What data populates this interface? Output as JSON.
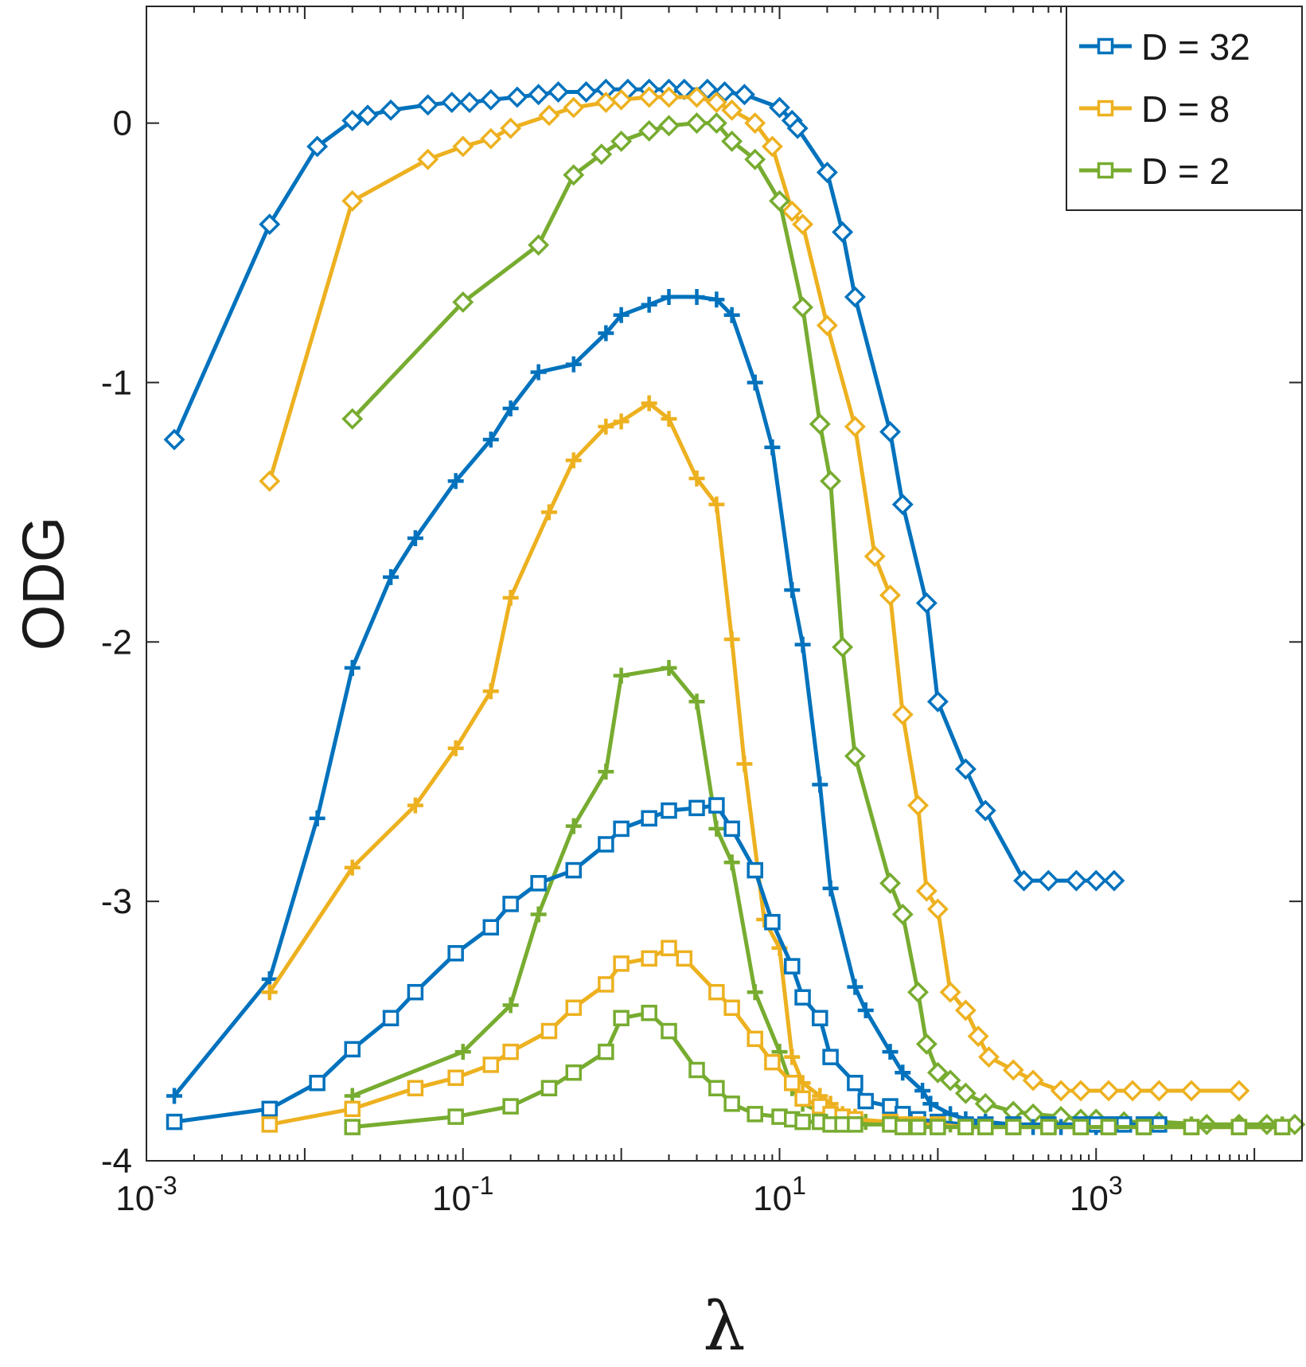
{
  "chart_data": {
    "type": "line",
    "xscale": "log",
    "xlim": [
      0.001,
      20000
    ],
    "ylim": [
      -4,
      0.45
    ],
    "xticks": [
      {
        "value": 0.001,
        "base": "10",
        "exp": "-3"
      },
      {
        "value": 0.1,
        "base": "10",
        "exp": "-1"
      },
      {
        "value": 10,
        "base": "10",
        "exp": "1"
      },
      {
        "value": 1000,
        "base": "10",
        "exp": "3"
      }
    ],
    "yticks": [
      {
        "value": 0,
        "label": "0"
      },
      {
        "value": -1,
        "label": "-1"
      },
      {
        "value": -2,
        "label": "-2"
      },
      {
        "value": -3,
        "label": "-3"
      },
      {
        "value": -4,
        "label": "-4"
      }
    ],
    "xlabel": "λ",
    "ylabel": "ODG",
    "legend_position": "top-right",
    "colors": {
      "blue": "#0072bd",
      "yellow": "#edb120",
      "green": "#77ac30"
    },
    "legend": [
      {
        "label": "D = 32",
        "color": "#0072bd"
      },
      {
        "label": "D = 8",
        "color": "#edb120"
      },
      {
        "label": "D = 2",
        "color": "#77ac30"
      }
    ],
    "series": [
      {
        "name": "D = 32 (diamond)",
        "color": "#0072bd",
        "marker": "diamond",
        "x": [
          0.0015,
          0.006,
          0.012,
          0.02,
          0.025,
          0.035,
          0.06,
          0.085,
          0.11,
          0.15,
          0.22,
          0.3,
          0.4,
          0.6,
          0.8,
          1.1,
          1.5,
          2,
          2.5,
          3.5,
          4.5,
          6,
          10,
          12,
          13,
          20,
          25,
          30,
          50,
          60,
          85,
          100,
          150,
          200,
          350,
          500,
          750,
          1000,
          1300
        ],
        "y": [
          -1.22,
          -0.39,
          -0.09,
          0.01,
          0.03,
          0.05,
          0.07,
          0.08,
          0.08,
          0.09,
          0.1,
          0.11,
          0.12,
          0.12,
          0.13,
          0.13,
          0.13,
          0.13,
          0.13,
          0.13,
          0.12,
          0.11,
          0.06,
          0.01,
          -0.02,
          -0.19,
          -0.42,
          -0.67,
          -1.19,
          -1.47,
          -1.85,
          -2.23,
          -2.49,
          -2.65,
          -2.92,
          -2.92,
          -2.92,
          -2.92,
          -2.92
        ]
      },
      {
        "name": "D = 8 (diamond)",
        "color": "#edb120",
        "marker": "diamond",
        "x": [
          0.006,
          0.02,
          0.06,
          0.1,
          0.15,
          0.2,
          0.35,
          0.5,
          0.8,
          1,
          1.5,
          2,
          3,
          4,
          5,
          7,
          9,
          12,
          14,
          20,
          30,
          40,
          50,
          60,
          75,
          85,
          100,
          120,
          150,
          180,
          210,
          300,
          400,
          600,
          800,
          1200,
          1700,
          2500,
          4000,
          8000
        ],
        "y": [
          -1.38,
          -0.3,
          -0.14,
          -0.09,
          -0.06,
          -0.02,
          0.03,
          0.06,
          0.08,
          0.09,
          0.1,
          0.1,
          0.1,
          0.08,
          0.05,
          0.0,
          -0.09,
          -0.34,
          -0.39,
          -0.78,
          -1.17,
          -1.67,
          -1.82,
          -2.28,
          -2.63,
          -2.96,
          -3.03,
          -3.35,
          -3.42,
          -3.52,
          -3.6,
          -3.65,
          -3.69,
          -3.73,
          -3.73,
          -3.73,
          -3.73,
          -3.73,
          -3.73,
          -3.73
        ]
      },
      {
        "name": "D = 2 (diamond)",
        "color": "#77ac30",
        "marker": "diamond",
        "x": [
          0.02,
          0.1,
          0.3,
          0.5,
          0.75,
          1,
          1.5,
          2,
          3,
          4,
          5,
          7,
          10,
          14,
          18,
          21,
          25,
          30,
          50,
          60,
          75,
          85,
          100,
          120,
          150,
          200,
          300,
          400,
          600,
          800,
          1000,
          1500,
          2500,
          5000,
          8000,
          12000,
          18000
        ],
        "y": [
          -1.14,
          -0.69,
          -0.47,
          -0.2,
          -0.12,
          -0.07,
          -0.03,
          -0.01,
          0.0,
          0.0,
          -0.07,
          -0.14,
          -0.3,
          -0.71,
          -1.16,
          -1.38,
          -2.02,
          -2.44,
          -2.93,
          -3.05,
          -3.35,
          -3.55,
          -3.66,
          -3.69,
          -3.74,
          -3.78,
          -3.81,
          -3.82,
          -3.83,
          -3.84,
          -3.84,
          -3.85,
          -3.85,
          -3.86,
          -3.86,
          -3.86,
          -3.86
        ]
      },
      {
        "name": "D = 32 (plus)",
        "color": "#0072bd",
        "marker": "plus",
        "x": [
          0.0015,
          0.006,
          0.012,
          0.02,
          0.035,
          0.05,
          0.09,
          0.15,
          0.2,
          0.3,
          0.5,
          0.8,
          1,
          1.5,
          2,
          3,
          4,
          5,
          7,
          9,
          12,
          14,
          18,
          21,
          30,
          35,
          50,
          60,
          80,
          90,
          120,
          150,
          200,
          300,
          400,
          600,
          800,
          1000,
          1200
        ],
        "y": [
          -3.75,
          -3.3,
          -2.68,
          -2.1,
          -1.75,
          -1.6,
          -1.38,
          -1.22,
          -1.1,
          -0.96,
          -0.93,
          -0.81,
          -0.74,
          -0.7,
          -0.67,
          -0.67,
          -0.68,
          -0.74,
          -1.0,
          -1.25,
          -1.8,
          -2.01,
          -2.55,
          -2.95,
          -3.33,
          -3.42,
          -3.58,
          -3.66,
          -3.73,
          -3.78,
          -3.82,
          -3.84,
          -3.85,
          -3.86,
          -3.87,
          -3.87,
          -3.87,
          -3.87,
          -3.87
        ]
      },
      {
        "name": "D = 8 (plus)",
        "color": "#edb120",
        "marker": "plus",
        "x": [
          0.006,
          0.02,
          0.05,
          0.09,
          0.15,
          0.2,
          0.35,
          0.5,
          0.8,
          1,
          1.5,
          2,
          3,
          4,
          5,
          6,
          8,
          10,
          12,
          14,
          18,
          21,
          25,
          30,
          35,
          50,
          60,
          75,
          100,
          150,
          200,
          300,
          500,
          800,
          1200,
          2000,
          4000,
          8000,
          15000
        ],
        "y": [
          -3.35,
          -2.87,
          -2.63,
          -2.41,
          -2.19,
          -1.83,
          -1.5,
          -1.3,
          -1.17,
          -1.15,
          -1.08,
          -1.14,
          -1.37,
          -1.47,
          -1.99,
          -2.47,
          -3.07,
          -3.18,
          -3.6,
          -3.7,
          -3.75,
          -3.78,
          -3.82,
          -3.83,
          -3.85,
          -3.86,
          -3.86,
          -3.87,
          -3.87,
          -3.87,
          -3.87,
          -3.87,
          -3.87,
          -3.87,
          -3.87,
          -3.87,
          -3.87,
          -3.87,
          -3.87
        ]
      },
      {
        "name": "D = 2 (plus)",
        "color": "#77ac30",
        "marker": "plus",
        "x": [
          0.02,
          0.1,
          0.2,
          0.3,
          0.5,
          0.8,
          1,
          2,
          3,
          4,
          5,
          7,
          10,
          12,
          14,
          18,
          21,
          25,
          30,
          35,
          50,
          60,
          75,
          100,
          120,
          150,
          200,
          300,
          500,
          800,
          1200,
          2000,
          4000,
          8000,
          15000
        ],
        "y": [
          -3.75,
          -3.58,
          -3.4,
          -3.05,
          -2.71,
          -2.5,
          -2.13,
          -2.1,
          -2.23,
          -2.72,
          -2.85,
          -3.35,
          -3.58,
          -3.72,
          -3.78,
          -3.81,
          -3.82,
          -3.84,
          -3.85,
          -3.85,
          -3.86,
          -3.86,
          -3.86,
          -3.86,
          -3.86,
          -3.86,
          -3.86,
          -3.86,
          -3.86,
          -3.86,
          -3.86,
          -3.86,
          -3.86,
          -3.86,
          -3.86
        ]
      },
      {
        "name": "D = 32 (square)",
        "color": "#0072bd",
        "marker": "square",
        "x": [
          0.0015,
          0.006,
          0.012,
          0.02,
          0.035,
          0.05,
          0.09,
          0.15,
          0.2,
          0.3,
          0.5,
          0.8,
          1,
          1.5,
          2,
          3,
          4,
          5,
          7,
          9,
          12,
          14,
          18,
          21,
          30,
          35,
          50,
          60,
          75,
          100,
          150,
          200,
          300,
          500,
          800,
          1000,
          1200,
          1500,
          2000,
          2500
        ],
        "y": [
          -3.85,
          -3.8,
          -3.7,
          -3.57,
          -3.45,
          -3.35,
          -3.2,
          -3.1,
          -3.01,
          -2.93,
          -2.88,
          -2.78,
          -2.72,
          -2.68,
          -2.65,
          -2.64,
          -2.63,
          -2.72,
          -2.88,
          -3.08,
          -3.25,
          -3.37,
          -3.45,
          -3.6,
          -3.7,
          -3.77,
          -3.79,
          -3.82,
          -3.84,
          -3.85,
          -3.86,
          -3.86,
          -3.86,
          -3.86,
          -3.86,
          -3.86,
          -3.86,
          -3.86,
          -3.86,
          -3.86
        ]
      },
      {
        "name": "D = 8 (square)",
        "color": "#edb120",
        "marker": "square",
        "x": [
          0.006,
          0.02,
          0.05,
          0.09,
          0.15,
          0.2,
          0.35,
          0.5,
          0.8,
          1,
          1.5,
          2,
          2.5,
          4,
          5,
          7,
          9,
          12,
          14,
          18,
          21,
          25,
          30,
          50,
          60,
          75,
          100,
          150,
          200,
          300,
          500,
          800,
          1200,
          2000,
          4000,
          8000,
          15000
        ],
        "y": [
          -3.86,
          -3.8,
          -3.72,
          -3.68,
          -3.63,
          -3.58,
          -3.5,
          -3.41,
          -3.32,
          -3.24,
          -3.22,
          -3.18,
          -3.22,
          -3.35,
          -3.41,
          -3.53,
          -3.62,
          -3.7,
          -3.76,
          -3.79,
          -3.82,
          -3.83,
          -3.84,
          -3.85,
          -3.86,
          -3.86,
          -3.86,
          -3.87,
          -3.87,
          -3.87,
          -3.87,
          -3.87,
          -3.87,
          -3.87,
          -3.87,
          -3.87,
          -3.87
        ]
      },
      {
        "name": "D = 2 (square)",
        "color": "#77ac30",
        "marker": "square",
        "x": [
          0.02,
          0.09,
          0.2,
          0.35,
          0.5,
          0.8,
          1,
          1.5,
          2,
          3,
          4,
          5,
          7,
          10,
          12,
          14,
          18,
          21,
          25,
          30,
          50,
          60,
          75,
          100,
          150,
          200,
          300,
          500,
          800,
          1200,
          2000,
          4000,
          8000,
          15000
        ],
        "y": [
          -3.87,
          -3.83,
          -3.79,
          -3.72,
          -3.66,
          -3.58,
          -3.45,
          -3.43,
          -3.5,
          -3.65,
          -3.72,
          -3.78,
          -3.82,
          -3.83,
          -3.84,
          -3.85,
          -3.85,
          -3.86,
          -3.86,
          -3.86,
          -3.86,
          -3.87,
          -3.87,
          -3.87,
          -3.87,
          -3.87,
          -3.87,
          -3.87,
          -3.87,
          -3.87,
          -3.87,
          -3.87,
          -3.87,
          -3.87
        ]
      }
    ]
  }
}
